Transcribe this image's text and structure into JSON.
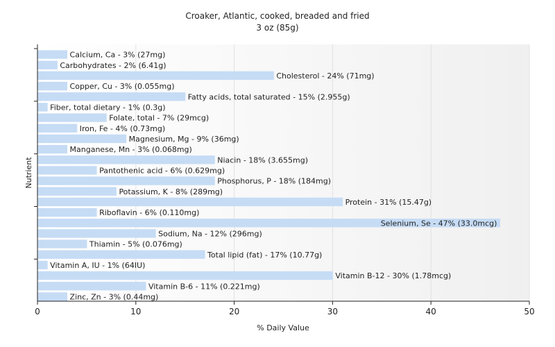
{
  "chart_data": {
    "type": "bar",
    "orientation": "horizontal",
    "title": "Croaker, Atlantic, cooked, breaded and fried",
    "subtitle": "3 oz (85g)",
    "xlabel": "% Daily Value",
    "ylabel": "Nutrient",
    "xlim": [
      0,
      50
    ],
    "xticks": [
      0,
      10,
      20,
      30,
      40,
      50
    ],
    "grid": true,
    "bar_color": "#c6dcf5",
    "bars": [
      {
        "name": "Calcium, Ca",
        "value": 3,
        "label": "Calcium, Ca - 3% (27mg)"
      },
      {
        "name": "Carbohydrates",
        "value": 2,
        "label": "Carbohydrates - 2% (6.41g)"
      },
      {
        "name": "Cholesterol",
        "value": 24,
        "label": "Cholesterol - 24% (71mg)"
      },
      {
        "name": "Copper, Cu",
        "value": 3,
        "label": "Copper, Cu - 3% (0.055mg)"
      },
      {
        "name": "Fatty acids, total saturated",
        "value": 15,
        "label": "Fatty acids, total saturated - 15% (2.955g)"
      },
      {
        "name": "Fiber, total dietary",
        "value": 1,
        "label": "Fiber, total dietary - 1% (0.3g)"
      },
      {
        "name": "Folate, total",
        "value": 7,
        "label": "Folate, total - 7% (29mcg)"
      },
      {
        "name": "Iron, Fe",
        "value": 4,
        "label": "Iron, Fe - 4% (0.73mg)"
      },
      {
        "name": "Magnesium, Mg",
        "value": 9,
        "label": "Magnesium, Mg - 9% (36mg)"
      },
      {
        "name": "Manganese, Mn",
        "value": 3,
        "label": "Manganese, Mn - 3% (0.068mg)"
      },
      {
        "name": "Niacin",
        "value": 18,
        "label": "Niacin - 18% (3.655mg)"
      },
      {
        "name": "Pantothenic acid",
        "value": 6,
        "label": "Pantothenic acid - 6% (0.629mg)"
      },
      {
        "name": "Phosphorus, P",
        "value": 18,
        "label": "Phosphorus, P - 18% (184mg)"
      },
      {
        "name": "Potassium, K",
        "value": 8,
        "label": "Potassium, K - 8% (289mg)"
      },
      {
        "name": "Protein",
        "value": 31,
        "label": "Protein - 31% (15.47g)"
      },
      {
        "name": "Riboflavin",
        "value": 6,
        "label": "Riboflavin - 6% (0.110mg)"
      },
      {
        "name": "Selenium, Se",
        "value": 47,
        "label": "Selenium, Se - 47% (33.0mcg)"
      },
      {
        "name": "Sodium, Na",
        "value": 12,
        "label": "Sodium, Na - 12% (296mg)"
      },
      {
        "name": "Thiamin",
        "value": 5,
        "label": "Thiamin - 5% (0.076mg)"
      },
      {
        "name": "Total lipid (fat)",
        "value": 17,
        "label": "Total lipid (fat) - 17% (10.77g)"
      },
      {
        "name": "Vitamin A, IU",
        "value": 1,
        "label": "Vitamin A, IU - 1% (64IU)"
      },
      {
        "name": "Vitamin B-12",
        "value": 30,
        "label": "Vitamin B-12 - 30% (1.78mcg)"
      },
      {
        "name": "Vitamin B-6",
        "value": 11,
        "label": "Vitamin B-6 - 11% (0.221mg)"
      },
      {
        "name": "Zinc, Zn",
        "value": 3,
        "label": "Zinc, Zn - 3% (0.44mg)"
      }
    ]
  }
}
